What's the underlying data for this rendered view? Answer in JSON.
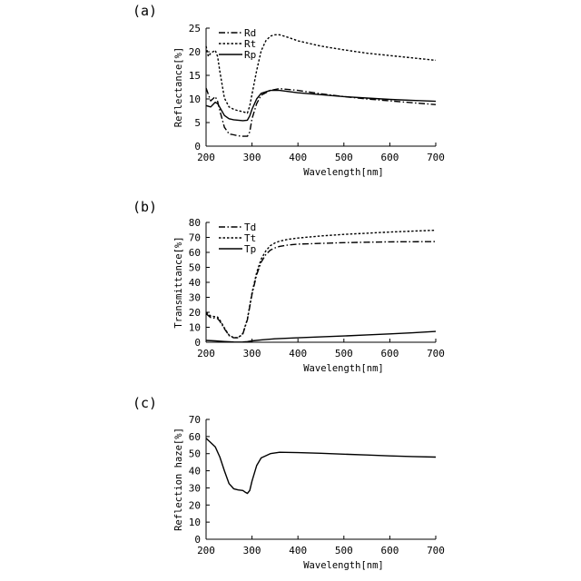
{
  "chart_data": [
    {
      "type": "line",
      "panel_label": "(a)",
      "title": "",
      "xlabel": "Wavelength[nm]",
      "ylabel": "Reflectance[%]",
      "xlim": [
        200,
        700
      ],
      "ylim": [
        0,
        25
      ],
      "xticks": [
        200,
        300,
        400,
        500,
        600,
        700
      ],
      "yticks": [
        0,
        5,
        10,
        15,
        20,
        25
      ],
      "grid": false,
      "legend": "top-left",
      "series": [
        {
          "name": "Rd",
          "style": "dashdot",
          "x": [
            200,
            210,
            220,
            225,
            230,
            240,
            250,
            260,
            270,
            280,
            290,
            295,
            300,
            310,
            320,
            340,
            360,
            400,
            450,
            500,
            550,
            600,
            650,
            700
          ],
          "y": [
            12.3,
            9.6,
            10.5,
            9.5,
            7.5,
            4.0,
            2.6,
            2.4,
            2.2,
            2.1,
            2.1,
            3.0,
            5.8,
            9.0,
            10.8,
            11.8,
            12.2,
            11.8,
            11.1,
            10.5,
            10.0,
            9.6,
            9.2,
            8.8
          ]
        },
        {
          "name": "Rt",
          "style": "dotted",
          "x": [
            200,
            205,
            210,
            220,
            225,
            230,
            240,
            250,
            260,
            270,
            280,
            290,
            295,
            300,
            310,
            320,
            330,
            340,
            350,
            360,
            380,
            400,
            450,
            500,
            550,
            600,
            650,
            700
          ],
          "y": [
            21.2,
            19.0,
            19.7,
            20.3,
            19.0,
            15.8,
            10.2,
            8.3,
            7.8,
            7.5,
            7.3,
            7.0,
            8.5,
            11.0,
            16.0,
            20.2,
            22.3,
            23.3,
            23.6,
            23.6,
            23.0,
            22.3,
            21.2,
            20.4,
            19.7,
            19.2,
            18.7,
            18.2
          ]
        },
        {
          "name": "Rp",
          "style": "solid",
          "x": [
            200,
            210,
            220,
            225,
            230,
            240,
            250,
            260,
            270,
            280,
            290,
            295,
            300,
            310,
            320,
            340,
            360,
            400,
            450,
            500,
            550,
            600,
            650,
            700
          ],
          "y": [
            8.6,
            8.3,
            9.3,
            9.0,
            8.2,
            6.5,
            5.8,
            5.6,
            5.5,
            5.4,
            5.5,
            6.4,
            7.8,
            10.0,
            11.2,
            11.8,
            11.8,
            11.3,
            10.9,
            10.5,
            10.2,
            9.9,
            9.7,
            9.5
          ]
        }
      ]
    },
    {
      "type": "line",
      "panel_label": "(b)",
      "title": "",
      "xlabel": "Wavelength[nm]",
      "ylabel": "Transmittance[%]",
      "xlim": [
        200,
        700
      ],
      "ylim": [
        0,
        80
      ],
      "xticks": [
        200,
        300,
        400,
        500,
        600,
        700
      ],
      "yticks": [
        0,
        10,
        20,
        30,
        40,
        50,
        60,
        70,
        80
      ],
      "grid": false,
      "legend": "top-left",
      "series": [
        {
          "name": "Td",
          "style": "dashdot",
          "x": [
            200,
            210,
            220,
            225,
            230,
            240,
            250,
            260,
            270,
            280,
            290,
            300,
            310,
            320,
            330,
            340,
            350,
            360,
            380,
            400,
            450,
            500,
            550,
            600,
            650,
            700
          ],
          "y": [
            19.0,
            16.5,
            16.0,
            15.8,
            14.0,
            9.0,
            4.5,
            3.0,
            3.0,
            5.5,
            15.0,
            32.0,
            45.0,
            53.5,
            58.5,
            61.5,
            63.0,
            64.0,
            65.0,
            65.5,
            66.0,
            66.5,
            66.8,
            67.0,
            67.1,
            67.2
          ]
        },
        {
          "name": "Tt",
          "style": "dotted",
          "x": [
            200,
            210,
            220,
            225,
            230,
            240,
            250,
            260,
            270,
            280,
            290,
            300,
            310,
            320,
            330,
            340,
            350,
            360,
            380,
            400,
            450,
            500,
            550,
            600,
            650,
            700
          ],
          "y": [
            20.0,
            17.5,
            17.0,
            16.8,
            14.8,
            9.6,
            4.8,
            3.1,
            3.1,
            5.8,
            15.5,
            33.0,
            46.5,
            55.5,
            61.0,
            64.5,
            66.3,
            67.5,
            68.8,
            69.6,
            71.0,
            72.0,
            72.8,
            73.6,
            74.2,
            74.8
          ]
        },
        {
          "name": "Tp",
          "style": "solid",
          "x": [
            200,
            220,
            240,
            260,
            270,
            280,
            290,
            300,
            320,
            350,
            400,
            450,
            500,
            550,
            600,
            650,
            700
          ],
          "y": [
            1.2,
            0.9,
            0.5,
            0.2,
            0.1,
            0.2,
            0.4,
            0.9,
            1.6,
            2.3,
            3.0,
            3.6,
            4.2,
            4.9,
            5.6,
            6.3,
            7.2
          ]
        }
      ]
    },
    {
      "type": "line",
      "panel_label": "(c)",
      "title": "",
      "xlabel": "Wavelength[nm]",
      "ylabel": "Reflection haze[%]",
      "xlim": [
        200,
        700
      ],
      "ylim": [
        0,
        70
      ],
      "xticks": [
        200,
        300,
        400,
        500,
        600,
        700
      ],
      "yticks": [
        0,
        10,
        20,
        30,
        40,
        50,
        60,
        70
      ],
      "grid": false,
      "legend": "none",
      "series": [
        {
          "name": "",
          "style": "solid",
          "x": [
            200,
            210,
            220,
            230,
            240,
            250,
            260,
            270,
            280,
            285,
            290,
            295,
            300,
            310,
            320,
            340,
            360,
            400,
            450,
            500,
            550,
            600,
            650,
            700
          ],
          "y": [
            59.0,
            56.5,
            54.0,
            48.0,
            40.0,
            32.5,
            29.5,
            28.8,
            28.5,
            27.5,
            26.8,
            28.5,
            34.0,
            43.0,
            47.5,
            50.0,
            50.8,
            50.6,
            50.2,
            49.7,
            49.2,
            48.7,
            48.3,
            48.0
          ]
        }
      ]
    }
  ]
}
